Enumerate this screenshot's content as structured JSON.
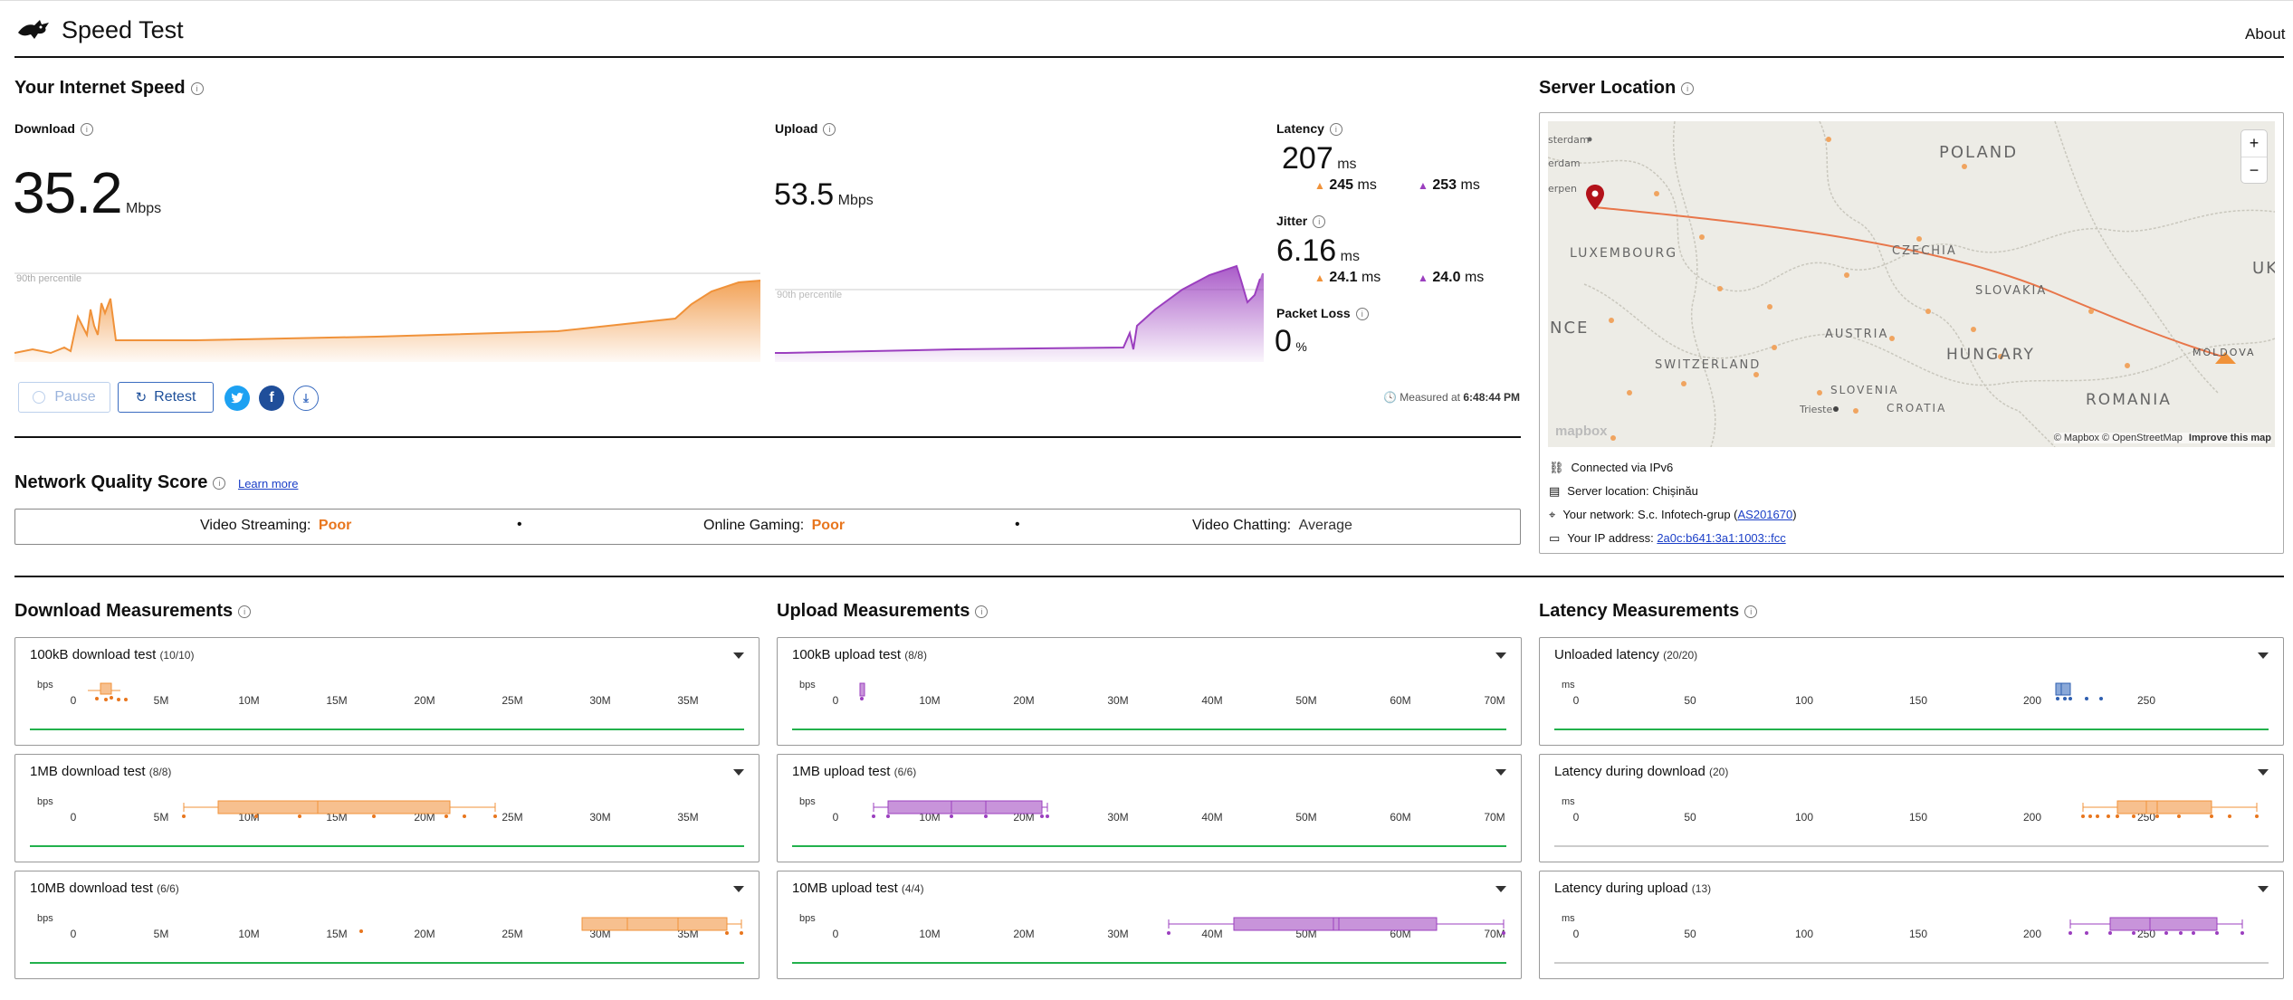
{
  "header": {
    "title": "Speed Test",
    "about": "About"
  },
  "speed": {
    "section_title": "Your Internet Speed",
    "download_label": "Download",
    "download_value": "35.2",
    "download_unit": "Mbps",
    "upload_label": "Upload",
    "upload_value": "53.5",
    "upload_unit": "Mbps",
    "percentile": "90th percentile",
    "latency_label": "Latency",
    "latency_value": "207",
    "latency_unit": "ms",
    "latency_down": "245",
    "latency_up": "253",
    "jitter_label": "Jitter",
    "jitter_value": "6.16",
    "jitter_unit": "ms",
    "jitter_down": "24.1",
    "jitter_up": "24.0",
    "loss_label": "Packet Loss",
    "loss_value": "0",
    "loss_unit": "%",
    "ms": "ms",
    "pause": "Pause",
    "retest": "Retest",
    "measured_prefix": "Measured at",
    "measured_time": "6:48:44 PM"
  },
  "server": {
    "title": "Server Location",
    "map_labels": {
      "poland": "POLAND",
      "czechia": "CZECHIA",
      "slovakia": "SLOVAKIA",
      "austria": "AUSTRIA",
      "hungary": "HUNGARY",
      "romania": "ROMANIA",
      "moldova": "MOLDOVA",
      "luxembourg": "LUXEMBOURG",
      "switzerland": "SWITZERLAND",
      "slovenia": "SLOVENIA",
      "croatia": "CROATIA",
      "trieste": "Trieste",
      "nce": "NCE",
      "uk": "UK",
      "sterdam": "sterdam",
      "erdam": "erdam",
      "erpen": "erpen"
    },
    "attribution": "© Mapbox © OpenStreetMap",
    "improve": "Improve this map",
    "mapbox": "mapbox",
    "zoom_in": "+",
    "zoom_out": "−",
    "connected": "Connected via IPv6",
    "location_prefix": "Server location:",
    "location": "Chișinău",
    "network_prefix": "Your network: S.c. Infotech-grup (",
    "network_link": "AS201670",
    "network_suffix": ")",
    "ip_prefix": "Your IP address:",
    "ip": "2a0c:b641:3a1:1003::fcc"
  },
  "nqs": {
    "title": "Network Quality Score",
    "learn_more": "Learn more",
    "items": [
      {
        "label": "Video Streaming:",
        "value": "Poor"
      },
      {
        "label": "Online Gaming:",
        "value": "Poor"
      },
      {
        "label": "Video Chatting:",
        "value": "Average"
      }
    ],
    "sep": "•"
  },
  "measurements": {
    "download_title": "Download Measurements",
    "upload_title": "Upload Measurements",
    "latency_title": "Latency Measurements",
    "bps": "bps",
    "ms": "ms",
    "download_ticks": [
      "0",
      "5M",
      "10M",
      "15M",
      "20M",
      "25M",
      "30M",
      "35M"
    ],
    "upload_ticks": [
      "0",
      "10M",
      "20M",
      "30M",
      "40M",
      "50M",
      "60M",
      "70M"
    ],
    "latency_ticks": [
      "0",
      "50",
      "100",
      "150",
      "200",
      "250"
    ],
    "download_cards": [
      {
        "title": "100kB download test",
        "count": "(10/10)"
      },
      {
        "title": "1MB download test",
        "count": "(8/8)"
      },
      {
        "title": "10MB download test",
        "count": "(6/6)"
      }
    ],
    "upload_cards": [
      {
        "title": "100kB upload test",
        "count": "(8/8)"
      },
      {
        "title": "1MB upload test",
        "count": "(6/6)"
      },
      {
        "title": "10MB upload test",
        "count": "(4/4)"
      }
    ],
    "latency_cards": [
      {
        "title": "Unloaded latency",
        "count": "(20/20)"
      },
      {
        "title": "Latency during download",
        "count": "(20)"
      },
      {
        "title": "Latency during upload",
        "count": "(13)"
      }
    ]
  },
  "colors": {
    "download": "#f0923a",
    "upload": "#9b3fbf",
    "latency": "#2f5fb0",
    "good": "#22b14c",
    "poor": "#e8761e"
  }
}
